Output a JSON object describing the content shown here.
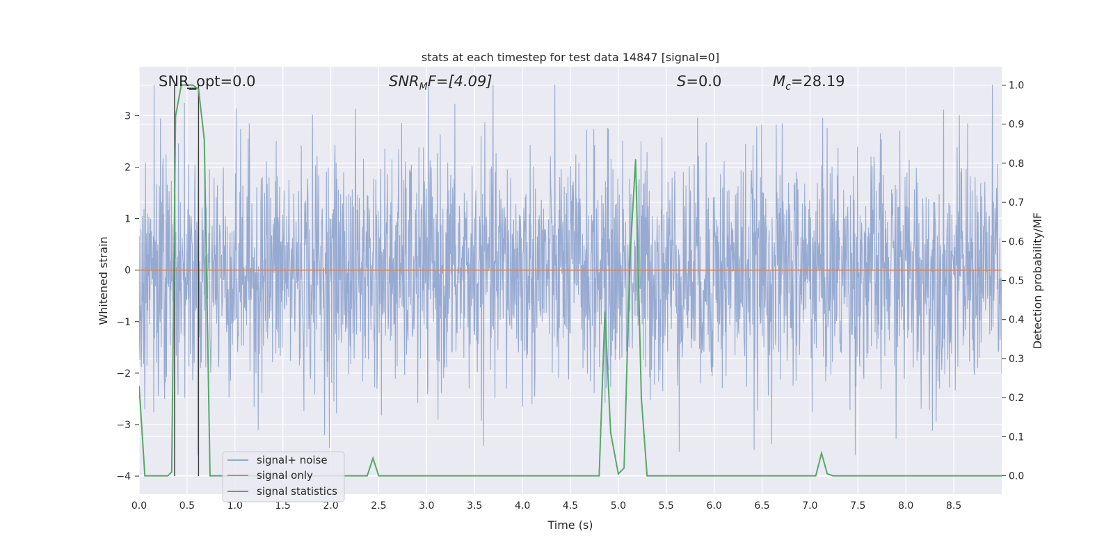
{
  "chart_data": {
    "type": "line",
    "title": "stats at each timestep for test data 14847 [signal=0]",
    "xlabel": "Time (s)",
    "ylabel": "Whitened strain",
    "y2label": "Detection probability/MF",
    "xlim": [
      0.0,
      9.0
    ],
    "ylim": [
      -4.35,
      3.95
    ],
    "y2lim": [
      -0.047,
      1.047
    ],
    "x_ticks": [
      0.0,
      0.5,
      1.0,
      1.5,
      2.0,
      2.5,
      3.0,
      3.5,
      4.0,
      4.5,
      5.0,
      5.5,
      6.0,
      6.5,
      7.0,
      7.5,
      8.0,
      8.5
    ],
    "x_tick_labels": [
      "0.0",
      "0.5",
      "1.0",
      "1.5",
      "2.0",
      "2.5",
      "3.0",
      "3.5",
      "4.0",
      "4.5",
      "5.0",
      "5.5",
      "6.0",
      "6.5",
      "7.0",
      "7.5",
      "8.0",
      "8.5"
    ],
    "y_ticks": [
      3,
      2,
      1,
      0,
      -1,
      -2,
      -3,
      -4
    ],
    "y_tick_labels": [
      "3",
      "2",
      "1",
      "0",
      "−1",
      "−2",
      "−3",
      "−4"
    ],
    "y2_ticks": [
      1.0,
      0.9,
      0.8,
      0.7,
      0.6,
      0.5,
      0.4,
      0.3,
      0.2,
      0.1,
      0.0
    ],
    "y2_tick_labels": [
      "1.0",
      "0.9",
      "0.8",
      "0.7",
      "0.6",
      "0.5",
      "0.4",
      "0.3",
      "0.2",
      "0.1",
      "0.0"
    ],
    "grid": true,
    "legend_position": "lower-left",
    "annotations": {
      "snr_opt": "SNR_opt=0.0",
      "snr_mf_base": "SNR",
      "snr_mf_sub": "M",
      "snr_mf_rest": "F=[4.09]",
      "s_var": "S",
      "s_rest": "=0.0",
      "mc_base": "M",
      "mc_sub": "c",
      "mc_rest": "=28.19"
    },
    "series": [
      {
        "name": "signal+ noise",
        "color": "#92a6cf",
        "axis": "left",
        "noise": {
          "amplitude_typical": 1.4,
          "amplitude_peak": 3.6,
          "n_points": 2304,
          "seed": 14847
        }
      },
      {
        "name": "signal only",
        "color": "#dd8452",
        "axis": "left",
        "x": [
          0.0,
          9.0
        ],
        "y": [
          0.0,
          0.0
        ]
      },
      {
        "name": "signal statistics",
        "color": "#55a868",
        "axis": "right",
        "x": [
          0.0,
          0.06,
          0.12,
          0.2,
          0.3,
          0.34,
          0.38,
          0.44,
          0.5,
          0.56,
          0.62,
          0.68,
          0.74,
          0.8,
          1.0,
          1.5,
          2.0,
          2.38,
          2.44,
          2.5,
          3.0,
          4.0,
          4.8,
          4.86,
          4.92,
          5.0,
          5.06,
          5.12,
          5.18,
          5.24,
          5.3,
          5.36,
          5.42,
          6.0,
          7.0,
          7.06,
          7.12,
          7.18,
          7.24,
          8.0,
          9.0
        ],
        "y": [
          0.23,
          0.0,
          0.0,
          0.0,
          0.0,
          0.01,
          0.92,
          1.0,
          1.0,
          1.0,
          0.99,
          0.86,
          0.0,
          0.0,
          0.0,
          0.0,
          0.0,
          0.0,
          0.045,
          0.0,
          0.0,
          0.0,
          0.0,
          0.42,
          0.11,
          0.005,
          0.02,
          0.55,
          0.81,
          0.2,
          0.0,
          0.0,
          0.0,
          0.0,
          0.0,
          0.0,
          0.058,
          0.005,
          0.0,
          0.0,
          0.0
        ]
      }
    ],
    "markers": {
      "color": "#3a3a3a",
      "vlines_x": [
        0.37,
        0.62
      ],
      "hbar": {
        "x0": 0.5,
        "x1": 0.6,
        "y": 3.53
      }
    }
  }
}
